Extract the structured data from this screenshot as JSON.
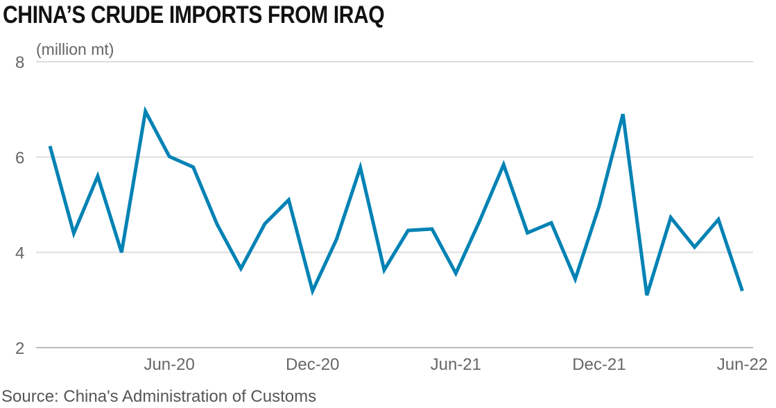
{
  "chart_data": {
    "type": "line",
    "title": "CHINA’S CRUDE IMPORTS FROM IRAQ",
    "ylabel": "(million mt)",
    "xlabel": "",
    "source": "Source: China's Administration of Customs",
    "ylim": [
      2,
      8
    ],
    "yticks": [
      "2",
      "4",
      "6",
      "8"
    ],
    "grid": true,
    "line_color": "#0082b4",
    "xtick_labels": [
      "Jun-20",
      "Dec-20",
      "Jun-21",
      "Dec-21",
      "Jun-22"
    ],
    "x": [
      "Jan-20",
      "Feb-20",
      "Mar-20",
      "Apr-20",
      "May-20",
      "Jun-20",
      "Jul-20",
      "Aug-20",
      "Sep-20",
      "Oct-20",
      "Nov-20",
      "Dec-20",
      "Jan-21",
      "Feb-21",
      "Mar-21",
      "Apr-21",
      "May-21",
      "Jun-21",
      "Jul-21",
      "Aug-21",
      "Sep-21",
      "Oct-21",
      "Nov-21",
      "Dec-21",
      "Jan-22",
      "Feb-22",
      "Mar-22",
      "Apr-22",
      "May-22",
      "Jun-22"
    ],
    "values": [
      6.23,
      4.4,
      5.6,
      4.0,
      6.96,
      6.01,
      5.79,
      4.59,
      3.66,
      4.6,
      5.1,
      3.19,
      4.27,
      5.78,
      3.63,
      4.46,
      4.49,
      3.56,
      4.66,
      5.84,
      4.41,
      4.62,
      3.44,
      4.97,
      6.9,
      3.1,
      4.73,
      4.11,
      4.69,
      3.19
    ]
  }
}
